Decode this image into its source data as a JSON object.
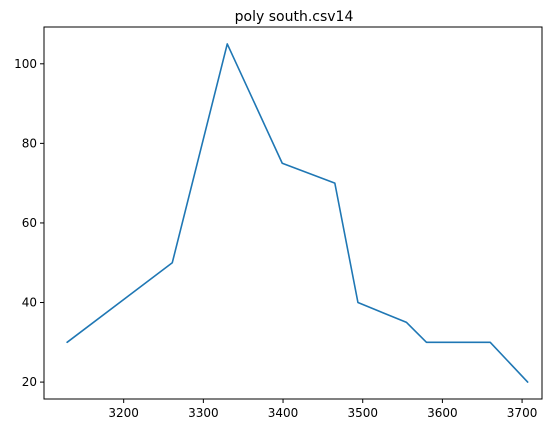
{
  "chart_data": {
    "type": "line",
    "title": "poly south.csv14",
    "xlabel": "",
    "ylabel": "",
    "xlim": [
      3100,
      3725
    ],
    "ylim": [
      15.75,
      109.25
    ],
    "x_ticks": [
      3200,
      3300,
      3400,
      3500,
      3600,
      3700
    ],
    "x_tick_labels": [
      "3200",
      "3300",
      "3400",
      "3500",
      "3600",
      "3700"
    ],
    "y_ticks": [
      20,
      40,
      60,
      80,
      100
    ],
    "y_tick_labels": [
      "20",
      "40",
      "60",
      "80",
      "100"
    ],
    "grid": false,
    "series": [
      {
        "color": "#1f77b4",
        "x": [
          3129,
          3261,
          3330,
          3399,
          3465,
          3494,
          3555,
          3580,
          3660,
          3707
        ],
        "y": [
          30,
          50,
          105,
          75,
          70,
          40,
          35,
          30,
          30,
          20
        ]
      }
    ]
  }
}
